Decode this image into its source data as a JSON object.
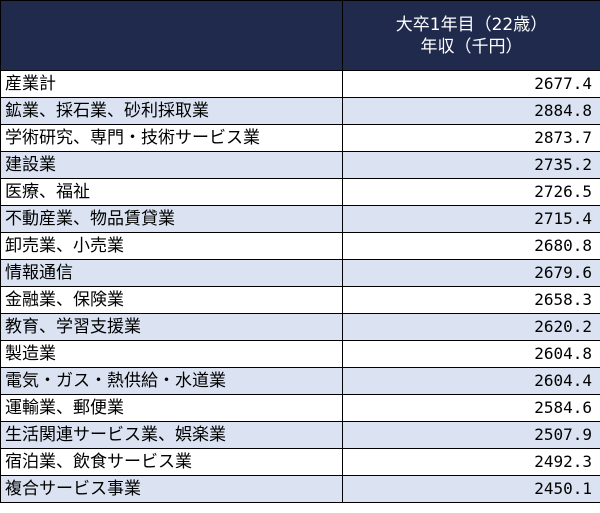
{
  "table": {
    "header": {
      "industry": "",
      "value_line1": "大卒1年目（22歳）",
      "value_line2": "年収（千円）"
    },
    "rows": [
      {
        "industry": "産業計",
        "value": "2677.4"
      },
      {
        "industry": "鉱業、採石業、砂利採取業",
        "value": "2884.8"
      },
      {
        "industry": "学術研究、専門・技術サービス業",
        "value": "2873.7"
      },
      {
        "industry": "建設業",
        "value": "2735.2"
      },
      {
        "industry": "医療、福祉",
        "value": "2726.5"
      },
      {
        "industry": "不動産業、物品賃貸業",
        "value": "2715.4"
      },
      {
        "industry": "卸売業、小売業",
        "value": "2680.8"
      },
      {
        "industry": "情報通信",
        "value": "2679.6"
      },
      {
        "industry": "金融業、保険業",
        "value": "2658.3"
      },
      {
        "industry": "教育、学習支援業",
        "value": "2620.2"
      },
      {
        "industry": "製造業",
        "value": "2604.8"
      },
      {
        "industry": "電気・ガス・熱供給・水道業",
        "value": "2604.4"
      },
      {
        "industry": "運輸業、郵便業",
        "value": "2584.6"
      },
      {
        "industry": "生活関連サービス業、娯楽業",
        "value": "2507.9"
      },
      {
        "industry": "宿泊業、飲食サービス業",
        "value": "2492.3"
      },
      {
        "industry": "複合サービス事業",
        "value": "2450.1"
      }
    ]
  },
  "colors": {
    "header_bg": "#1f2a4d",
    "header_text": "#ffffff",
    "stripe": "#dbe3f2"
  }
}
